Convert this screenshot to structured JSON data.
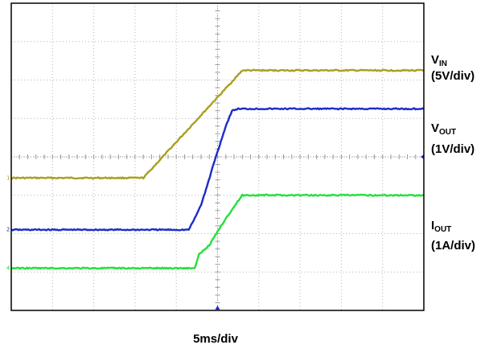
{
  "chart_data": {
    "type": "line",
    "title": "",
    "x": {
      "divisions": 10,
      "range_div": [
        0,
        10
      ],
      "scale_label": "5ms/div",
      "unit": "ms",
      "ms_per_div": 5
    },
    "y": {
      "divisions": 8,
      "range_div": [
        -4,
        4
      ]
    },
    "grid": true,
    "series": [
      {
        "id": "vin",
        "label_main": "V",
        "label_sub": "IN",
        "scale": "(5V/div)",
        "marker": "1",
        "color": "#a8a020",
        "x_div": [
          0,
          3.2,
          5.6,
          10
        ],
        "y_div": [
          -0.55,
          -0.55,
          2.25,
          2.25
        ]
      },
      {
        "id": "vout",
        "label_main": "V",
        "label_sub": "OUT",
        "scale": "(1V/div)",
        "marker": "2",
        "color": "#1c2cc8",
        "x_div": [
          0,
          4.3,
          4.45,
          4.6,
          4.75,
          4.9,
          5.05,
          5.2,
          5.35,
          5.5,
          10
        ],
        "y_div": [
          -1.9,
          -1.9,
          -1.6,
          -1.25,
          -0.75,
          -0.2,
          0.3,
          0.8,
          1.2,
          1.25,
          1.25
        ]
      },
      {
        "id": "iout",
        "label_main": "I",
        "label_sub": "OUT",
        "scale": "(1A/div)",
        "marker": "4",
        "color": "#22e03a",
        "x_div": [
          0,
          4.45,
          4.55,
          4.8,
          5.2,
          5.6,
          10
        ],
        "y_div": [
          -2.9,
          -2.9,
          -2.55,
          -2.3,
          -1.6,
          -1.0,
          -1.0
        ]
      }
    ]
  }
}
